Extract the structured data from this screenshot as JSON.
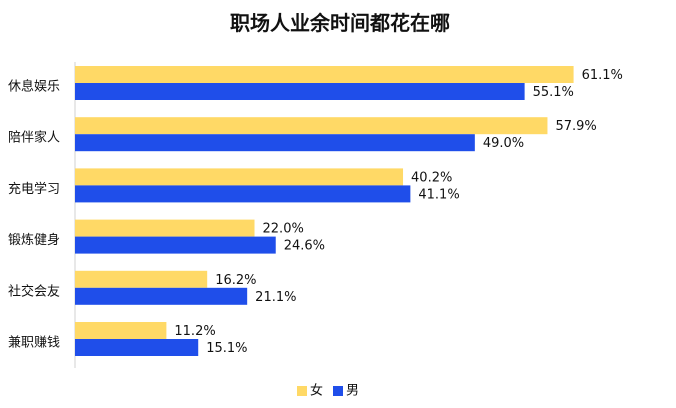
{
  "chart_data": {
    "type": "bar",
    "orientation": "horizontal",
    "title": "职场人业余时间都花在哪",
    "categories": [
      "休息娱乐",
      "陪伴家人",
      "充电学习",
      "锻炼健身",
      "社交会友",
      "兼职赚钱"
    ],
    "series": [
      {
        "name": "女",
        "color": "#FFD966",
        "values": [
          61.1,
          57.9,
          40.2,
          22.0,
          16.2,
          11.2
        ]
      },
      {
        "name": "男",
        "color": "#1F4EEA",
        "values": [
          55.1,
          49.0,
          41.1,
          24.6,
          21.1,
          15.1
        ]
      }
    ],
    "value_suffix": "%",
    "xlim": [
      0,
      70
    ],
    "grid": false,
    "legend_position": "bottom"
  }
}
